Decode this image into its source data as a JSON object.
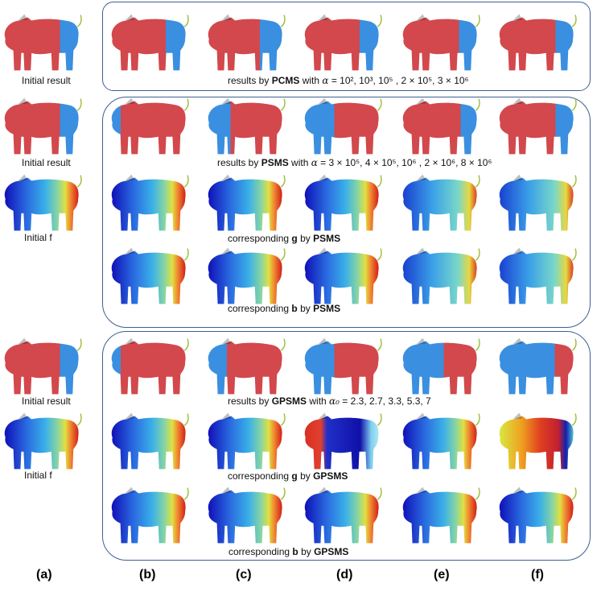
{
  "row1": {
    "left_label": "Initial result",
    "caption": {
      "prefix": "results  by ",
      "method": "PCMS",
      "with": " with  ",
      "alpha_sym": "α",
      "values": " = 10², 10³, 10⁵ , 2 × 10⁵, 3 × 10⁶"
    }
  },
  "row2": {
    "left_label": "Initial result",
    "caption": {
      "prefix": "results  by ",
      "method": "PSMS",
      "with": " with  ",
      "alpha_sym": "α",
      "values": " = 3 × 10⁵, 4 × 10⁵, 10⁶ , 2 × 10⁶, 8 × 10⁶"
    }
  },
  "row3": {
    "left_label": "Initial f",
    "caption": {
      "prefix": "corresponding  ",
      "symbol": "g",
      "mid": "  by ",
      "method": "PSMS"
    }
  },
  "row4": {
    "caption": {
      "prefix": "corresponding  ",
      "symbol": "b",
      "mid": "  by ",
      "method": "PSMS"
    }
  },
  "row5": {
    "left_label": "Initial result",
    "caption": {
      "prefix": "results  by ",
      "method": "GPSMS",
      "with": " with  ",
      "alpha_sym": "α₀",
      "values": " = 2.3,  2.7, 3.3,  5.3,  7"
    }
  },
  "row6": {
    "left_label": "Initial f",
    "caption": {
      "prefix": "corresponding  ",
      "symbol": "g",
      "mid": "  by ",
      "method": "GPSMS"
    }
  },
  "row7": {
    "caption": {
      "prefix": "corresponding  ",
      "symbol": "b",
      "mid": "  by ",
      "method": "GPSMS"
    }
  },
  "column_labels": [
    "(a)",
    "(b)",
    "(c)",
    "(d)",
    "(e)",
    "(f)"
  ]
}
